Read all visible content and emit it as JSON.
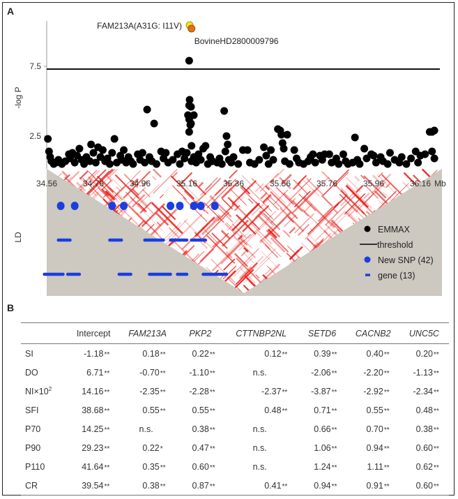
{
  "panel_a_label": "A",
  "panel_b_label": "B",
  "chart_data": {
    "type": "scatter",
    "ylabel": "-log P",
    "xlabel_unit": "Mb",
    "ld_label": "LD",
    "xlim": [
      34.56,
      36.24
    ],
    "ylim": [
      0,
      10.8
    ],
    "x_ticks": [
      "34.56",
      "34.76",
      "34.96",
      "35.16",
      "35.36",
      "35.56",
      "35.76",
      "35.96",
      "36.16"
    ],
    "y_ticks": [
      "7.5",
      "2.5"
    ],
    "threshold": 7.3,
    "annotations": [
      {
        "text": "FAM213A(A31G: I11V)",
        "x": 35.175,
        "y": 10.45,
        "color": "#f2e21c"
      },
      {
        "text": "BovineHD2800009796",
        "x": 35.18,
        "y": 10.2,
        "color": "#e0701c"
      }
    ],
    "series": [
      {
        "name": "EMMAX",
        "color": "#000000",
        "points": [
          [
            34.565,
            2.3
          ],
          [
            34.57,
            1.4
          ],
          [
            34.575,
            1.0
          ],
          [
            34.58,
            0.7
          ],
          [
            34.59,
            0.5
          ],
          [
            34.6,
            0.6
          ],
          [
            34.61,
            0.8
          ],
          [
            34.625,
            0.5
          ],
          [
            34.64,
            0.7
          ],
          [
            34.655,
            1.2
          ],
          [
            34.66,
            0.9
          ],
          [
            34.67,
            1.3
          ],
          [
            34.68,
            0.6
          ],
          [
            34.69,
            1.1
          ],
          [
            34.7,
            1.6
          ],
          [
            34.71,
            0.8
          ],
          [
            34.72,
            0.5
          ],
          [
            34.73,
            1.0
          ],
          [
            34.745,
            0.7
          ],
          [
            34.75,
            1.9
          ],
          [
            34.76,
            1.3
          ],
          [
            34.77,
            0.6
          ],
          [
            34.78,
            1.7
          ],
          [
            34.79,
            1.0
          ],
          [
            34.8,
            1.5
          ],
          [
            34.81,
            0.7
          ],
          [
            34.82,
            0.9
          ],
          [
            34.83,
            0.5
          ],
          [
            34.84,
            1.3
          ],
          [
            34.85,
            2.3
          ],
          [
            34.86,
            0.6
          ],
          [
            34.875,
            1.1
          ],
          [
            34.88,
            0.8
          ],
          [
            34.89,
            1.5
          ],
          [
            34.9,
            0.6
          ],
          [
            34.91,
            1.0
          ],
          [
            34.92,
            0.7
          ],
          [
            34.93,
            0.5
          ],
          [
            34.95,
            1.2
          ],
          [
            34.96,
            0.8
          ],
          [
            34.97,
            1.3
          ],
          [
            34.98,
            0.6
          ],
          [
            34.99,
            4.4
          ],
          [
            35.0,
            1.0
          ],
          [
            35.01,
            0.7
          ],
          [
            35.02,
            3.4
          ],
          [
            35.03,
            0.5
          ],
          [
            35.05,
            1.4
          ],
          [
            35.06,
            0.9
          ],
          [
            35.07,
            1.3
          ],
          [
            35.08,
            0.6
          ],
          [
            35.1,
            0.8
          ],
          [
            35.12,
            1.2
          ],
          [
            35.13,
            0.5
          ],
          [
            35.14,
            1.4
          ],
          [
            35.15,
            0.9
          ],
          [
            35.16,
            1.3
          ],
          [
            35.165,
            4.0
          ],
          [
            35.17,
            7.9
          ],
          [
            35.172,
            5.1
          ],
          [
            35.17,
            4.7
          ],
          [
            35.178,
            4.6
          ],
          [
            35.17,
            3.7
          ],
          [
            35.178,
            3.4
          ],
          [
            35.19,
            4.0
          ],
          [
            35.175,
            3.3
          ],
          [
            35.17,
            2.8
          ],
          [
            35.18,
            1.8
          ],
          [
            35.18,
            0.7
          ],
          [
            35.19,
            1.0
          ],
          [
            35.2,
            0.6
          ],
          [
            35.21,
            1.2
          ],
          [
            35.22,
            0.8
          ],
          [
            35.23,
            1.6
          ],
          [
            35.24,
            1.8
          ],
          [
            35.25,
            0.5
          ],
          [
            35.26,
            1.0
          ],
          [
            35.27,
            0.7
          ],
          [
            35.29,
            0.6
          ],
          [
            35.3,
            0.9
          ],
          [
            35.31,
            0.5
          ],
          [
            35.32,
            4.3
          ],
          [
            35.33,
            2.5
          ],
          [
            35.335,
            1.9
          ],
          [
            35.325,
            1.4
          ],
          [
            35.34,
            0.8
          ],
          [
            35.35,
            0.6
          ],
          [
            35.36,
            1.0
          ],
          [
            35.38,
            0.5
          ],
          [
            35.4,
            1.5
          ],
          [
            35.42,
            1.5
          ],
          [
            35.43,
            0.6
          ],
          [
            35.45,
            0.5
          ],
          [
            35.47,
            0.8
          ],
          [
            35.49,
            1.7
          ],
          [
            35.5,
            1.1
          ],
          [
            35.51,
            0.5
          ],
          [
            35.52,
            1.5
          ],
          [
            35.53,
            0.8
          ],
          [
            35.55,
            3.0
          ],
          [
            35.56,
            2.9
          ],
          [
            35.565,
            2.6
          ],
          [
            35.57,
            2.0
          ],
          [
            35.575,
            1.6
          ],
          [
            35.58,
            0.7
          ],
          [
            35.59,
            2.6
          ],
          [
            35.6,
            0.5
          ],
          [
            35.62,
            1.5
          ],
          [
            35.63,
            0.9
          ],
          [
            35.64,
            0.6
          ],
          [
            35.66,
            0.5
          ],
          [
            35.68,
            0.7
          ],
          [
            35.69,
            1.0
          ],
          [
            35.7,
            1.2
          ],
          [
            35.71,
            0.6
          ],
          [
            35.73,
            1.1
          ],
          [
            35.74,
            0.8
          ],
          [
            35.75,
            1.2
          ],
          [
            35.77,
            1.2
          ],
          [
            35.78,
            0.6
          ],
          [
            35.8,
            0.9
          ],
          [
            35.81,
            0.5
          ],
          [
            35.83,
            1.2
          ],
          [
            35.84,
            0.7
          ],
          [
            35.85,
            0.5
          ],
          [
            35.87,
            0.6
          ],
          [
            35.88,
            2.4
          ],
          [
            35.89,
            0.8
          ],
          [
            35.9,
            0.5
          ],
          [
            35.92,
            1.6
          ],
          [
            35.93,
            0.9
          ],
          [
            35.95,
            1.2
          ],
          [
            35.96,
            1.1
          ],
          [
            35.97,
            0.6
          ],
          [
            35.99,
            1.0
          ],
          [
            36.0,
            0.7
          ],
          [
            36.02,
            0.5
          ],
          [
            36.03,
            1.3
          ],
          [
            36.05,
            0.8
          ],
          [
            36.07,
            0.6
          ],
          [
            36.08,
            1.0
          ],
          [
            36.1,
            0.5
          ],
          [
            36.12,
            0.9
          ],
          [
            36.14,
            1.4
          ],
          [
            36.15,
            0.6
          ],
          [
            36.16,
            1.1
          ],
          [
            36.18,
            1.2
          ],
          [
            36.2,
            2.8
          ],
          [
            36.21,
            2.8
          ],
          [
            36.22,
            2.9
          ],
          [
            36.21,
            1.4
          ],
          [
            36.22,
            0.9
          ]
        ]
      }
    ],
    "ld_track": {
      "new_snp_positions": [
        34.62,
        34.68,
        34.84,
        34.89,
        35.09,
        35.13,
        35.19,
        35.22,
        35.28
      ],
      "gene_rows": [
        [
          [
            34.61,
            34.66
          ],
          [
            34.83,
            34.88
          ],
          [
            34.98,
            35.06
          ],
          [
            35.09,
            35.16
          ],
          [
            35.18,
            35.24
          ]
        ],
        [
          [
            34.55,
            34.63
          ],
          [
            34.65,
            34.7
          ],
          [
            34.87,
            34.92
          ],
          [
            35.0,
            35.09
          ],
          [
            35.12,
            35.16
          ],
          [
            35.23,
            35.33
          ]
        ]
      ],
      "heatmap_colors": [
        "#ffffff",
        "#e8201a"
      ],
      "background_color": "#cdc8c0"
    },
    "legend": {
      "placement": "right",
      "items": [
        {
          "label": "EMMAX",
          "symbol": "dot",
          "color": "#000000"
        },
        {
          "label": "threshold",
          "symbol": "line",
          "color": "#000000"
        },
        {
          "label": "New SNP (42)",
          "symbol": "dot",
          "color": "#1a3ee0"
        },
        {
          "label": "gene (13)",
          "symbol": "dash",
          "color": "#1a3ee0"
        }
      ]
    }
  },
  "table": {
    "columns": [
      "",
      "Intercept",
      "FAM213A",
      "PKP2",
      "CTTNBP2NL",
      "SETD6",
      "CACNB2",
      "UNC5C"
    ],
    "rows": [
      {
        "label": "SI",
        "label_sup": "",
        "cells": [
          [
            "-1.18",
            "**"
          ],
          [
            "0.18",
            "**"
          ],
          [
            "0.22",
            "**"
          ],
          [
            "0.12",
            "**"
          ],
          [
            "0.39",
            "**"
          ],
          [
            "0.40",
            "**"
          ],
          [
            "0.20",
            "**"
          ]
        ]
      },
      {
        "label": "DO",
        "label_sup": "",
        "cells": [
          [
            "6.71",
            "**"
          ],
          [
            "-0.70",
            "**"
          ],
          [
            "-1.10",
            "**"
          ],
          [
            "n.s.",
            ""
          ],
          [
            "-2.06",
            "**"
          ],
          [
            "-2.20",
            "**"
          ],
          [
            "-1.13",
            "**"
          ]
        ]
      },
      {
        "label": "NI×10",
        "label_sup": "2",
        "cells": [
          [
            "14.16",
            "**"
          ],
          [
            "-2.35",
            "**"
          ],
          [
            "-2.28",
            "**"
          ],
          [
            "-2.37",
            "**"
          ],
          [
            "-3.87",
            "**"
          ],
          [
            "-2.92",
            "**"
          ],
          [
            "-2.34",
            "**"
          ]
        ]
      },
      {
        "label": "SFI",
        "label_sup": "",
        "cells": [
          [
            "38.68",
            "**"
          ],
          [
            "0.55",
            "**"
          ],
          [
            "0.55",
            "**"
          ],
          [
            "0.48",
            "**"
          ],
          [
            "0.71",
            "**"
          ],
          [
            "0.55",
            "**"
          ],
          [
            "0.48",
            "**"
          ]
        ]
      },
      {
        "label": "P70",
        "label_sup": "",
        "cells": [
          [
            "14.25",
            "**"
          ],
          [
            "n.s.",
            ""
          ],
          [
            "0.38",
            "**"
          ],
          [
            "n.s.",
            ""
          ],
          [
            "0.66",
            "**"
          ],
          [
            "0.70",
            "**"
          ],
          [
            "0.38",
            "**"
          ]
        ]
      },
      {
        "label": "P90",
        "label_sup": "",
        "cells": [
          [
            "29.23",
            "**"
          ],
          [
            "0.22",
            "*"
          ],
          [
            "0.47",
            "**"
          ],
          [
            "n.s.",
            ""
          ],
          [
            "1.06",
            "**"
          ],
          [
            "0.94",
            "**"
          ],
          [
            "0.60",
            "**"
          ]
        ]
      },
      {
        "label": "P110",
        "label_sup": "",
        "cells": [
          [
            "41.64",
            "**"
          ],
          [
            "0.35",
            "**"
          ],
          [
            "0.60",
            "**"
          ],
          [
            "n.s.",
            ""
          ],
          [
            "1.24",
            "**"
          ],
          [
            "1.11",
            "**"
          ],
          [
            "0.62",
            "**"
          ]
        ]
      },
      {
        "label": "CR",
        "label_sup": "",
        "cells": [
          [
            "39.54",
            "**"
          ],
          [
            "0.38",
            "**"
          ],
          [
            "0.87",
            "**"
          ],
          [
            "0.41",
            "**"
          ],
          [
            "0.94",
            "**"
          ],
          [
            "0.91",
            "**"
          ],
          [
            "0.60",
            "**"
          ]
        ]
      }
    ]
  }
}
